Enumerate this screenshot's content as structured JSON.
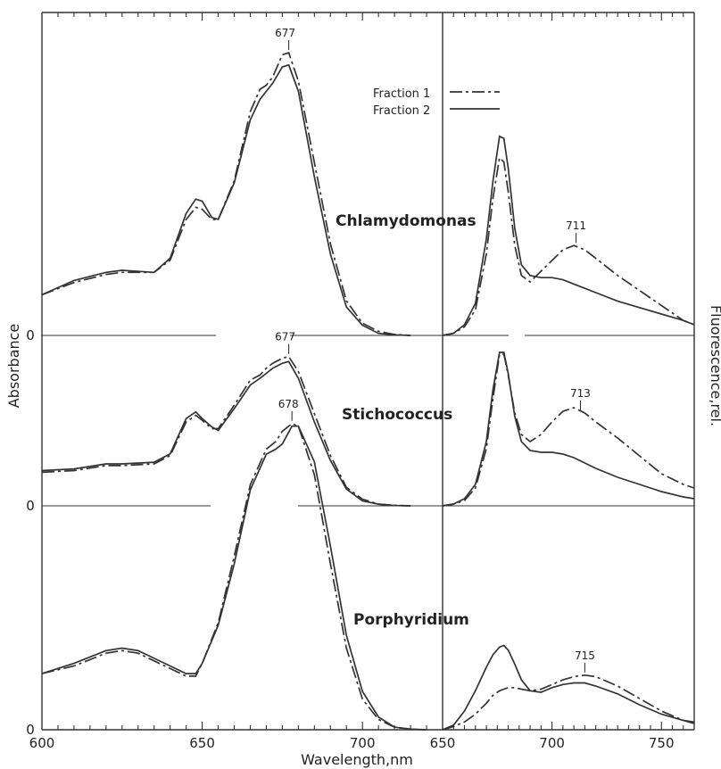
{
  "chart_data": {
    "type": "line",
    "axes": {
      "xlabel": "Wavelength,nm",
      "ylabel_left": "Absorbance",
      "ylabel_right": "Fluorescence,rel.",
      "absorbance_xticks": [
        "600",
        "650",
        "700"
      ],
      "fluorescence_xticks": [
        "650",
        "700",
        "750"
      ],
      "absorbance_xlim": [
        600,
        725
      ],
      "fluorescence_xlim": [
        650,
        765
      ],
      "zero_labels": [
        "0",
        "0",
        "0"
      ]
    },
    "legend": {
      "placement": "top-center",
      "items": [
        {
          "label": "Fraction 1",
          "style": "dashed"
        },
        {
          "label": "Fraction 2",
          "style": "solid"
        }
      ]
    },
    "panels": [
      {
        "organism": "Chlamydomonas",
        "absorbance_peak_label": "677",
        "fluorescence_peak_label": "711",
        "absorbance": {
          "x": [
            600,
            610,
            620,
            625,
            635,
            640,
            645,
            648,
            650,
            653,
            655,
            660,
            665,
            668,
            670,
            672,
            675,
            677,
            680,
            685,
            690,
            695,
            700,
            705,
            710,
            715
          ],
          "fraction_1": [
            0.2,
            0.26,
            0.3,
            0.31,
            0.31,
            0.37,
            0.57,
            0.63,
            0.62,
            0.57,
            0.57,
            0.76,
            1.1,
            1.21,
            1.23,
            1.27,
            1.38,
            1.39,
            1.25,
            0.85,
            0.45,
            0.17,
            0.06,
            0.02,
            0.005,
            0
          ],
          "fraction_2": [
            0.2,
            0.27,
            0.31,
            0.32,
            0.31,
            0.38,
            0.6,
            0.67,
            0.66,
            0.58,
            0.57,
            0.75,
            1.06,
            1.16,
            1.2,
            1.24,
            1.32,
            1.33,
            1.2,
            0.78,
            0.4,
            0.14,
            0.05,
            0.01,
            0.003,
            0
          ]
        },
        "fluorescence": {
          "x": [
            650,
            655,
            660,
            665,
            670,
            673,
            676,
            678,
            680,
            683,
            686,
            690,
            695,
            700,
            705,
            710,
            715,
            720,
            730,
            740,
            750,
            760,
            765
          ],
          "fraction_1": [
            0,
            0.01,
            0.04,
            0.12,
            0.38,
            0.64,
            0.83,
            0.81,
            0.67,
            0.42,
            0.28,
            0.25,
            0.3,
            0.35,
            0.4,
            0.42,
            0.4,
            0.36,
            0.28,
            0.21,
            0.14,
            0.07,
            0.05
          ],
          "fraction_2": [
            0,
            0.01,
            0.05,
            0.15,
            0.45,
            0.72,
            0.93,
            0.92,
            0.78,
            0.5,
            0.33,
            0.28,
            0.27,
            0.27,
            0.26,
            0.24,
            0.22,
            0.2,
            0.16,
            0.13,
            0.1,
            0.07,
            0.05
          ]
        }
      },
      {
        "organism": "Stichococcus",
        "absorbance_peak_label": "677",
        "fluorescence_peak_label": "713",
        "absorbance": {
          "x": [
            600,
            610,
            620,
            625,
            635,
            640,
            645,
            648,
            650,
            653,
            655,
            660,
            665,
            668,
            670,
            672,
            675,
            677,
            680,
            685,
            690,
            695,
            700,
            705,
            710,
            715
          ],
          "fraction_1": [
            0.2,
            0.21,
            0.24,
            0.24,
            0.25,
            0.3,
            0.5,
            0.54,
            0.51,
            0.46,
            0.46,
            0.6,
            0.75,
            0.78,
            0.82,
            0.85,
            0.88,
            0.89,
            0.8,
            0.55,
            0.3,
            0.11,
            0.04,
            0.01,
            0.003,
            0
          ],
          "fraction_2": [
            0.21,
            0.22,
            0.25,
            0.25,
            0.26,
            0.31,
            0.52,
            0.56,
            0.52,
            0.47,
            0.45,
            0.58,
            0.72,
            0.76,
            0.79,
            0.82,
            0.85,
            0.86,
            0.76,
            0.5,
            0.27,
            0.1,
            0.03,
            0.01,
            0.002,
            0
          ]
        },
        "fluorescence": {
          "x": [
            650,
            655,
            660,
            665,
            670,
            673,
            676,
            678,
            680,
            683,
            686,
            690,
            695,
            700,
            705,
            710,
            715,
            720,
            730,
            740,
            750,
            760,
            765
          ],
          "fraction_1": [
            0,
            0.01,
            0.03,
            0.1,
            0.32,
            0.6,
            0.85,
            0.85,
            0.73,
            0.52,
            0.4,
            0.36,
            0.4,
            0.47,
            0.53,
            0.55,
            0.52,
            0.47,
            0.38,
            0.28,
            0.18,
            0.12,
            0.1
          ],
          "fraction_2": [
            0,
            0.01,
            0.04,
            0.12,
            0.36,
            0.65,
            0.86,
            0.86,
            0.74,
            0.5,
            0.36,
            0.31,
            0.3,
            0.3,
            0.29,
            0.27,
            0.24,
            0.21,
            0.16,
            0.12,
            0.08,
            0.05,
            0.04
          ]
        }
      },
      {
        "organism": "Porphyridium",
        "absorbance_peak_label": "678",
        "fluorescence_peak_label": "715",
        "absorbance": {
          "x": [
            600,
            610,
            620,
            625,
            630,
            635,
            640,
            645,
            648,
            650,
            655,
            660,
            665,
            670,
            673,
            675,
            678,
            680,
            685,
            690,
            695,
            700,
            705,
            710,
            715,
            720
          ],
          "fraction_1": [
            0.22,
            0.25,
            0.3,
            0.31,
            0.3,
            0.27,
            0.24,
            0.21,
            0.21,
            0.26,
            0.42,
            0.68,
            0.96,
            1.1,
            1.13,
            1.17,
            1.2,
            1.19,
            1.0,
            0.65,
            0.32,
            0.12,
            0.04,
            0.01,
            0.002,
            0
          ],
          "fraction_2": [
            0.22,
            0.26,
            0.31,
            0.32,
            0.31,
            0.28,
            0.25,
            0.22,
            0.22,
            0.26,
            0.41,
            0.65,
            0.94,
            1.08,
            1.1,
            1.12,
            1.19,
            1.19,
            1.05,
            0.72,
            0.37,
            0.15,
            0.05,
            0.01,
            0.002,
            0
          ]
        },
        "fluorescence": {
          "x": [
            650,
            655,
            660,
            665,
            670,
            673,
            676,
            678,
            680,
            683,
            686,
            690,
            695,
            700,
            705,
            710,
            715,
            720,
            730,
            740,
            750,
            760,
            765
          ],
          "fraction_1": [
            0,
            0.02,
            0.05,
            0.1,
            0.17,
            0.22,
            0.25,
            0.26,
            0.27,
            0.27,
            0.26,
            0.25,
            0.26,
            0.29,
            0.32,
            0.34,
            0.35,
            0.34,
            0.28,
            0.2,
            0.12,
            0.06,
            0.04
          ],
          "fraction_2": [
            0,
            0.03,
            0.12,
            0.25,
            0.4,
            0.48,
            0.53,
            0.54,
            0.51,
            0.42,
            0.32,
            0.25,
            0.24,
            0.27,
            0.29,
            0.3,
            0.3,
            0.28,
            0.23,
            0.16,
            0.1,
            0.06,
            0.05
          ]
        }
      }
    ]
  }
}
